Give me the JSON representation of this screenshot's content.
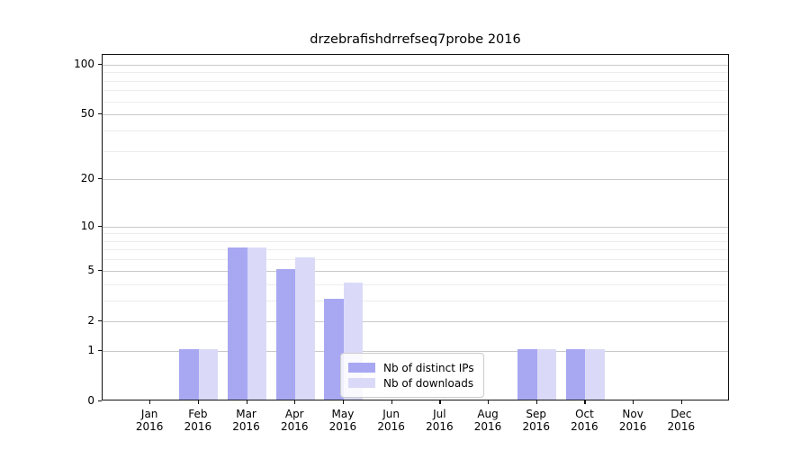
{
  "title": "drzebrafishdrrefseq7probe 2016",
  "chart_data": {
    "type": "bar",
    "title": "drzebrafishdrrefseq7probe 2016",
    "categories": [
      "Jan",
      "Feb",
      "Mar",
      "Apr",
      "May",
      "Jun",
      "Jul",
      "Aug",
      "Sep",
      "Oct",
      "Nov",
      "Dec"
    ],
    "year_label": "2016",
    "series": [
      {
        "name": "Nb of distinct IPs",
        "color": "#a8a8f2",
        "values": [
          0,
          1,
          7,
          5,
          3,
          0,
          0,
          0,
          1,
          1,
          0,
          0
        ]
      },
      {
        "name": "Nb of downloads",
        "color": "#dadaf8",
        "values": [
          0,
          1,
          7,
          6,
          4,
          0,
          0,
          0,
          1,
          1,
          0,
          0
        ]
      }
    ],
    "xlabel": "",
    "ylabel": "",
    "yscale": "log1p",
    "ylim": [
      0,
      115
    ],
    "y_major_ticks": [
      0,
      1,
      2,
      5,
      10,
      20,
      50,
      100
    ],
    "y_minor_gridlines": [
      3,
      4,
      6,
      7,
      8,
      9,
      30,
      40,
      60,
      70,
      80,
      90
    ],
    "grid": true,
    "legend_position": "lower-center-inside"
  },
  "colors": {
    "major_grid": "#c9c9c9",
    "minor_grid": "#ececec",
    "spine": "#111111",
    "background": "#ffffff"
  }
}
